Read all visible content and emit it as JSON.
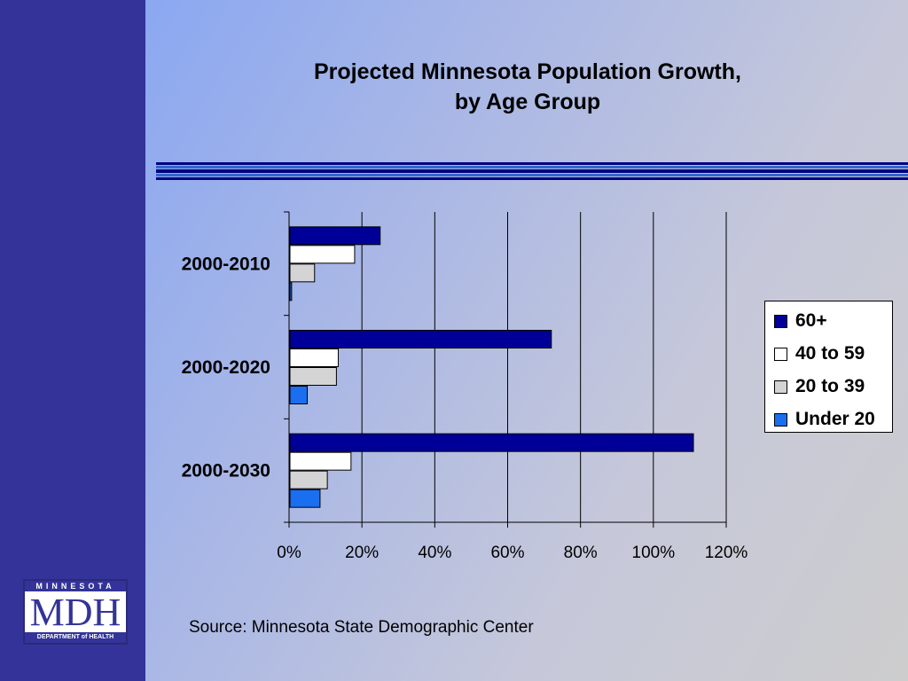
{
  "slide": {
    "title_line1": "Projected Minnesota Population Growth,",
    "title_line2": "by Age Group",
    "source": "Source: Minnesota State Demographic Center"
  },
  "logo": {
    "top_text": "MINNESOTA",
    "main_text": "MDH",
    "bottom_text": "DEPARTMENT of HEALTH"
  },
  "colors": {
    "sidebar": "#333399",
    "rule_dark": "#000080",
    "rule_blue": "#3366cc"
  },
  "chart_data": {
    "type": "bar",
    "orientation": "horizontal",
    "title": "",
    "xlabel": "",
    "ylabel": "",
    "categories": [
      "2000-2010",
      "2000-2020",
      "2000-2030"
    ],
    "series": [
      {
        "name": "60+",
        "color": "#000099",
        "values": [
          25,
          72,
          111
        ]
      },
      {
        "name": "40 to 59",
        "color": "#ffffff",
        "values": [
          18,
          13.5,
          17
        ]
      },
      {
        "name": "20 to 39",
        "color": "#d4d4d4",
        "values": [
          7,
          13,
          10.5
        ]
      },
      {
        "name": "Under 20",
        "color": "#1a6ef0",
        "values": [
          0.7,
          5,
          8.5
        ]
      }
    ],
    "xlim": [
      0,
      120
    ],
    "xticks": [
      "0%",
      "20%",
      "40%",
      "60%",
      "80%",
      "100%",
      "120%"
    ],
    "grid": true,
    "legend_position": "right"
  }
}
